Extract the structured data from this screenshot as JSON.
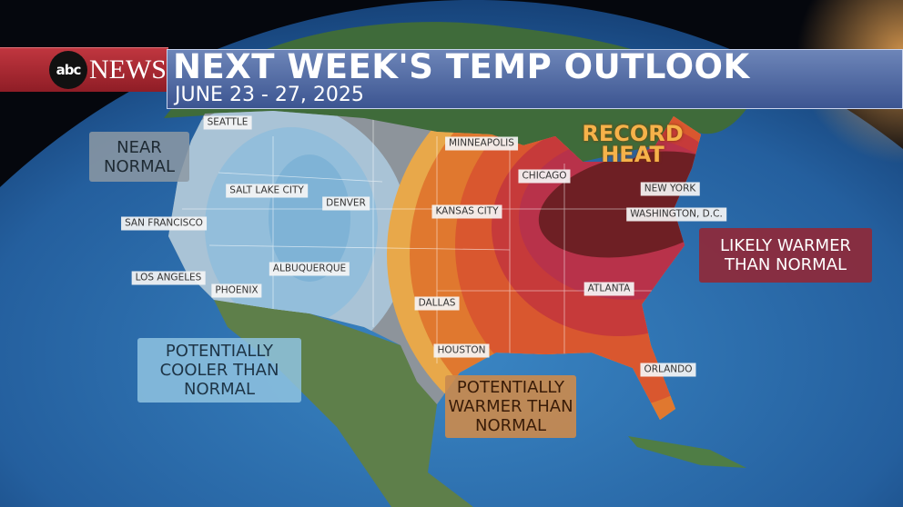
{
  "banner": {
    "logo_text": "abc",
    "network": "NEWS",
    "title": "NEXT WEEK'S TEMP OUTLOOK",
    "subtitle": "JUNE 23 - 27, 2025"
  },
  "highlight": {
    "line1": "RECORD",
    "line2": "HEAT",
    "color": "#f6b24a"
  },
  "cities": [
    {
      "name": "SEATTLE"
    },
    {
      "name": "SALT LAKE CITY"
    },
    {
      "name": "DENVER"
    },
    {
      "name": "SAN FRANCISCO"
    },
    {
      "name": "LOS ANGELES"
    },
    {
      "name": "PHOENIX"
    },
    {
      "name": "ALBUQUERQUE"
    },
    {
      "name": "MINNEAPOLIS"
    },
    {
      "name": "CHICAGO"
    },
    {
      "name": "KANSAS CITY"
    },
    {
      "name": "NEW YORK"
    },
    {
      "name": "WASHINGTON, D.C."
    },
    {
      "name": "DALLAS"
    },
    {
      "name": "ATLANTA"
    },
    {
      "name": "HOUSTON"
    },
    {
      "name": "ORLANDO"
    }
  ],
  "legend": {
    "near_normal": {
      "line1": "NEAR",
      "line2": "NORMAL",
      "color": "#8d99a3"
    },
    "cooler": {
      "line1": "POTENTIALLY",
      "line2": "COOLER THAN",
      "line3": "NORMAL",
      "color": "#8fc3e0"
    },
    "warmer": {
      "line1": "POTENTIALLY",
      "line2": "WARMER THAN",
      "line3": "NORMAL",
      "color": "#c98a4e"
    },
    "likely_warmer": {
      "line1": "LIKELY WARMER",
      "line2": "THAN NORMAL",
      "color": "#8e2a3a"
    }
  },
  "colors": {
    "brand_red": "#b0303a",
    "title_blue": "#4f67a3",
    "ocean": "#2a67a8",
    "near_normal": "#8d949b",
    "cooler_light": "#a9c3d6",
    "cooler": "#7fb3d6",
    "warm_orange": "#e0782f",
    "warm_red": "#c63a3a",
    "likely_warm": "#d3455a",
    "record": "#6e1f24"
  }
}
